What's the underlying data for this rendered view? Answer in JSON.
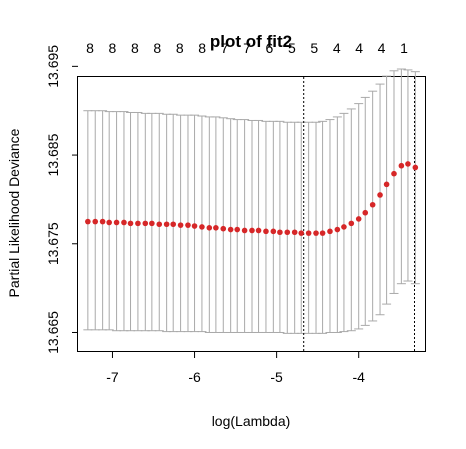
{
  "chart_data": {
    "type": "scatter",
    "title": "plot of fit2",
    "xlabel": "log(Lambda)",
    "ylabel": "Partial Likelihood Deviance",
    "xlim": [
      -7.42,
      -3.18
    ],
    "ylim": [
      13.6628,
      13.6938
    ],
    "x_ticks": [
      -7,
      -6,
      -5,
      -4
    ],
    "x_tick_labels": [
      "-7",
      "-6",
      "-5",
      "-4"
    ],
    "y_ticks": [
      13.665,
      13.675,
      13.685,
      13.695
    ],
    "y_tick_labels": [
      "13.665",
      "13.675",
      "13.685",
      "13.695"
    ],
    "top_axis_labels": [
      "8",
      "8",
      "8",
      "8",
      "8",
      "8",
      "7",
      "7",
      "6",
      "5",
      "5",
      "4",
      "4",
      "4",
      "1"
    ],
    "point_color": "#d62728",
    "errorbar_color": "#a9a9a9",
    "vertical_lines": [
      -4.67,
      -3.32
    ],
    "series": [
      {
        "x": [
          -7.3,
          -7.21,
          -7.12,
          -7.04,
          -6.95,
          -6.86,
          -6.78,
          -6.69,
          -6.6,
          -6.52,
          -6.43,
          -6.34,
          -6.26,
          -6.17,
          -6.08,
          -6.0,
          -5.91,
          -5.82,
          -5.74,
          -5.65,
          -5.56,
          -5.48,
          -5.39,
          -5.3,
          -5.22,
          -5.13,
          -5.04,
          -4.96,
          -4.87,
          -4.78,
          -4.7,
          -4.61,
          -4.52,
          -4.44,
          -4.35,
          -4.26,
          -4.18,
          -4.09,
          -4.0,
          -3.92,
          -3.83,
          -3.74,
          -3.66,
          -3.57,
          -3.48,
          -3.4,
          -3.31
        ],
        "y": [
          13.6775,
          13.6775,
          13.6775,
          13.6774,
          13.6774,
          13.6774,
          13.6773,
          13.6773,
          13.6773,
          13.6773,
          13.6772,
          13.6772,
          13.6772,
          13.6771,
          13.6771,
          13.677,
          13.6769,
          13.6768,
          13.6768,
          13.6767,
          13.6766,
          13.6766,
          13.6765,
          13.6765,
          13.6765,
          13.6764,
          13.6764,
          13.6763,
          13.6763,
          13.6763,
          13.6762,
          13.6762,
          13.6762,
          13.6762,
          13.6764,
          13.6766,
          13.6769,
          13.6773,
          13.6778,
          13.6785,
          13.6794,
          13.6805,
          13.6817,
          13.6829,
          13.6838,
          13.684,
          13.6836
        ],
        "lower": [
          13.6653,
          13.6653,
          13.6653,
          13.6653,
          13.6652,
          13.6652,
          13.6652,
          13.6652,
          13.6652,
          13.6652,
          13.6652,
          13.6651,
          13.6651,
          13.6651,
          13.6651,
          13.6651,
          13.6651,
          13.665,
          13.665,
          13.665,
          13.665,
          13.665,
          13.665,
          13.665,
          13.665,
          13.665,
          13.665,
          13.665,
          13.6649,
          13.6649,
          13.6649,
          13.6649,
          13.6649,
          13.6649,
          13.665,
          13.665,
          13.6651,
          13.6652,
          13.6654,
          13.6658,
          13.6663,
          13.667,
          13.6682,
          13.6694,
          13.6705,
          13.6708,
          13.6705
        ],
        "upper": [
          13.69,
          13.69,
          13.69,
          13.6899,
          13.6899,
          13.6899,
          13.6898,
          13.6898,
          13.6897,
          13.6897,
          13.6897,
          13.6896,
          13.6896,
          13.6895,
          13.6895,
          13.6895,
          13.6894,
          13.6893,
          13.6893,
          13.6892,
          13.6891,
          13.689,
          13.689,
          13.6889,
          13.6889,
          13.6888,
          13.6888,
          13.6888,
          13.6887,
          13.6887,
          13.6887,
          13.6887,
          13.6887,
          13.6888,
          13.689,
          13.6893,
          13.6897,
          13.6902,
          13.6908,
          13.6915,
          13.6922,
          13.693,
          13.6939,
          13.6945,
          13.6947,
          13.6946,
          13.6944
        ]
      }
    ]
  }
}
